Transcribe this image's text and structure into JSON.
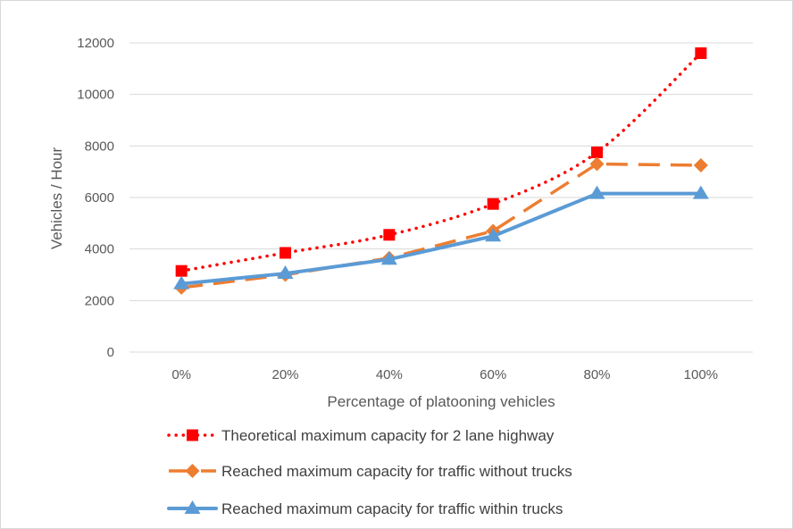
{
  "chart_data": {
    "type": "line",
    "categories": [
      "0%",
      "20%",
      "40%",
      "60%",
      "80%",
      "100%"
    ],
    "xlabel": "Percentage of platooning vehicles",
    "ylabel": "Vehicles / Hour",
    "ylim": [
      0,
      12000
    ],
    "yticks": [
      0,
      2000,
      4000,
      6000,
      8000,
      10000,
      12000
    ],
    "grid": true,
    "legend_position": "bottom",
    "series": [
      {
        "name": "Theoretical maximum capacity for 2 lane highway",
        "values": [
          3150,
          3850,
          4550,
          5750,
          7750,
          11600
        ],
        "color": "#ff0000",
        "line_style": "dotted",
        "marker": "square",
        "smooth": true
      },
      {
        "name": "Reached maximum capacity for traffic without trucks",
        "values": [
          2500,
          3000,
          3650,
          4700,
          7300,
          7250
        ],
        "color": "#ed7d31",
        "line_style": "dashed",
        "marker": "diamond",
        "smooth": false
      },
      {
        "name": "Reached maximum capacity for traffic within trucks",
        "values": [
          2650,
          3050,
          3600,
          4500,
          6150,
          6150
        ],
        "color": "#5b9bd5",
        "line_style": "solid",
        "marker": "triangle",
        "smooth": false
      }
    ]
  }
}
